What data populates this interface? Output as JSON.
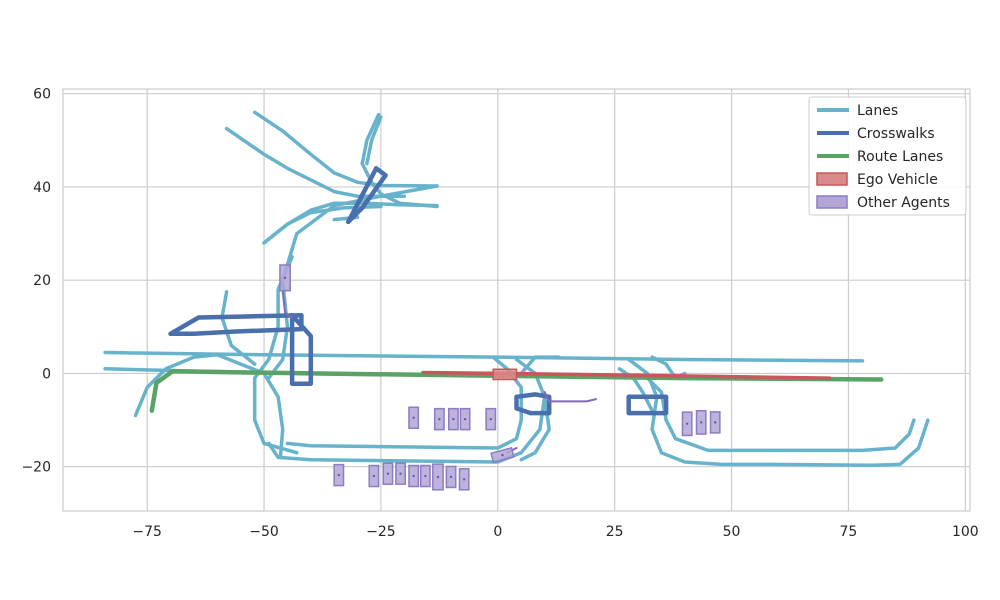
{
  "chart_data": {
    "type": "line",
    "title": "",
    "xlabel": "",
    "ylabel": "",
    "xlim": [
      -93,
      101
    ],
    "ylim": [
      -29.5,
      61
    ],
    "xticks": [
      -75,
      -50,
      -25,
      0,
      25,
      50,
      75,
      100
    ],
    "yticks": [
      -20,
      0,
      20,
      40,
      60
    ],
    "xtick_labels": [
      "−75",
      "−50",
      "−25",
      "0",
      "25",
      "50",
      "75",
      "100"
    ],
    "ytick_labels": [
      "−20",
      "0",
      "20",
      "40",
      "60"
    ],
    "grid": true,
    "legend_position": "top-right",
    "legend": [
      {
        "label": "Lanes",
        "kind": "line",
        "color": "#67b3cc"
      },
      {
        "label": "Crosswalks",
        "kind": "line",
        "color": "#4a6fad"
      },
      {
        "label": "Route Lanes",
        "kind": "line",
        "color": "#5aa265"
      },
      {
        "label": "Ego Vehicle",
        "kind": "patch",
        "color": "#d98a8a",
        "edge": "#c8565a"
      },
      {
        "label": "Other Agents",
        "kind": "patch",
        "color": "#b1a6d6",
        "edge": "#8d7cc0"
      }
    ],
    "lanes": [
      [
        [
          -84,
          4.5
        ],
        [
          -50,
          4
        ],
        [
          0,
          3.5
        ],
        [
          40,
          3
        ],
        [
          78,
          2.7
        ]
      ],
      [
        [
          -84,
          1
        ],
        [
          -65,
          0.5
        ],
        [
          -40,
          0
        ],
        [
          0,
          -0.5
        ],
        [
          40,
          -1
        ],
        [
          82,
          -1.3
        ]
      ],
      [
        [
          -77.5,
          -9
        ],
        [
          -75,
          -3
        ],
        [
          -71,
          1
        ],
        [
          -65,
          3.5
        ],
        [
          -60,
          4
        ],
        [
          -55,
          2
        ],
        [
          -50,
          0
        ],
        [
          -47,
          -5
        ],
        [
          -46,
          -12
        ],
        [
          -46.5,
          -18
        ]
      ],
      [
        [
          -58,
          17.5
        ],
        [
          -59,
          12
        ],
        [
          -57,
          6
        ],
        [
          -52,
          2
        ]
      ],
      [
        [
          -43,
          -17
        ],
        [
          -50,
          -15
        ],
        [
          -52,
          -10
        ],
        [
          -52,
          -1
        ],
        [
          -49,
          3
        ],
        [
          -47,
          10
        ],
        [
          -47,
          18
        ],
        [
          -44,
          25
        ]
      ],
      [
        [
          -49,
          -1
        ],
        [
          -46,
          3
        ],
        [
          -45,
          10
        ],
        [
          -46,
          20
        ],
        [
          -43,
          30
        ],
        [
          -35,
          36
        ],
        [
          -25,
          38
        ],
        [
          -13,
          40.2
        ]
      ],
      [
        [
          -52,
          56
        ],
        [
          -46,
          52
        ],
        [
          -40,
          47
        ],
        [
          -35,
          43
        ],
        [
          -30,
          41
        ],
        [
          -25,
          40.3
        ],
        [
          -13,
          40.2
        ]
      ],
      [
        [
          -58,
          52.5
        ],
        [
          -50,
          47
        ],
        [
          -45,
          44
        ],
        [
          -40,
          41.5
        ],
        [
          -35,
          39
        ],
        [
          -30,
          38
        ],
        [
          -25,
          38
        ],
        [
          -20,
          38
        ]
      ],
      [
        [
          -50,
          28
        ],
        [
          -45,
          32
        ],
        [
          -40,
          35
        ],
        [
          -35,
          36.5
        ],
        [
          -28,
          36.5
        ],
        [
          -22,
          36.2
        ],
        [
          -13,
          36
        ]
      ],
      [
        [
          -50,
          28
        ],
        [
          -45,
          32
        ],
        [
          -40,
          34.5
        ],
        [
          -33,
          35.5
        ],
        [
          -25,
          35.8
        ]
      ],
      [
        [
          -25.5,
          55.5
        ],
        [
          -28,
          50
        ],
        [
          -29,
          45
        ],
        [
          -27,
          41
        ],
        [
          -25,
          38.5
        ],
        [
          -21,
          36.5
        ],
        [
          -15,
          36
        ],
        [
          -13,
          35.8
        ]
      ],
      [
        [
          -25,
          55
        ],
        [
          -27,
          50
        ],
        [
          -28,
          45
        ]
      ],
      [
        [
          -35,
          33
        ],
        [
          -30,
          33.5
        ]
      ],
      [
        [
          -49,
          -15
        ],
        [
          -47,
          -18
        ],
        [
          -40,
          -18.5
        ],
        [
          0,
          -19
        ],
        [
          5,
          -17
        ],
        [
          9,
          -12
        ],
        [
          10,
          -5
        ],
        [
          8,
          0
        ],
        [
          4,
          3
        ]
      ],
      [
        [
          -45,
          -15
        ],
        [
          -40,
          -15.5
        ],
        [
          0,
          -16
        ],
        [
          4,
          -14
        ],
        [
          5,
          -10
        ],
        [
          5,
          -3
        ],
        [
          2,
          1
        ],
        [
          -1,
          3.5
        ]
      ],
      [
        [
          5,
          0
        ],
        [
          8,
          3.5
        ],
        [
          13,
          3.5
        ]
      ],
      [
        [
          10,
          -5
        ],
        [
          11,
          -12
        ],
        [
          8,
          -17
        ],
        [
          5,
          -18.5
        ]
      ],
      [
        [
          28,
          3
        ],
        [
          32,
          0
        ],
        [
          34,
          -5
        ],
        [
          33,
          -12
        ],
        [
          35,
          -17
        ],
        [
          40,
          -19
        ],
        [
          48,
          -19.5
        ],
        [
          58,
          -19.5
        ],
        [
          80,
          -19.7
        ],
        [
          86,
          -19.5
        ],
        [
          90,
          -16
        ],
        [
          92,
          -10
        ]
      ],
      [
        [
          32,
          -1
        ],
        [
          35,
          -4
        ],
        [
          36,
          -10
        ],
        [
          38,
          -14
        ],
        [
          45,
          -16.5
        ],
        [
          58,
          -16.5
        ],
        [
          78,
          -16.5
        ],
        [
          85,
          -16
        ],
        [
          88,
          -13
        ],
        [
          89,
          -10
        ]
      ],
      [
        [
          26,
          1
        ],
        [
          29,
          -1
        ],
        [
          31,
          -4
        ],
        [
          33,
          -8
        ]
      ],
      [
        [
          33,
          3.5
        ],
        [
          36,
          2
        ],
        [
          38,
          -1
        ],
        [
          40,
          0
        ]
      ]
    ],
    "crosswalks": [
      [
        [
          -70,
          8.5
        ],
        [
          -64,
          12
        ],
        [
          -55,
          12.2
        ],
        [
          -42,
          12.5
        ],
        [
          -42,
          9.5
        ],
        [
          -56,
          9
        ],
        [
          -65,
          8.5
        ],
        [
          -70,
          8.5
        ]
      ],
      [
        [
          -44,
          12.5
        ],
        [
          -40,
          8
        ],
        [
          -40,
          -2.2
        ],
        [
          -44,
          -2.2
        ],
        [
          -44,
          12.5
        ]
      ],
      [
        [
          -32,
          32.5
        ],
        [
          -26,
          44
        ],
        [
          -24,
          42.5
        ],
        [
          -29,
          35.5
        ],
        [
          -32,
          32.5
        ]
      ],
      [
        [
          4,
          -5
        ],
        [
          4,
          -7.5
        ],
        [
          7,
          -8.5
        ],
        [
          11,
          -8.5
        ],
        [
          11,
          -5
        ],
        [
          8,
          -4.5
        ],
        [
          4,
          -5
        ]
      ],
      [
        [
          28,
          -5
        ],
        [
          28,
          -8.5
        ],
        [
          36,
          -8.5
        ],
        [
          36,
          -5
        ],
        [
          28,
          -5
        ]
      ]
    ],
    "route_lanes": [
      [
        [
          -74,
          -8
        ],
        [
          -73,
          -2
        ],
        [
          -69.5,
          0.5
        ],
        [
          -60,
          0.3
        ],
        [
          -40,
          0
        ],
        [
          0,
          -0.5
        ],
        [
          40,
          -1
        ],
        [
          82,
          -1.3
        ]
      ]
    ],
    "ego_vehicle": {
      "center": [
        1.5,
        -0.2
      ],
      "length": 5,
      "width": 2.2,
      "trajectory": [
        [
          -16,
          0.2
        ],
        [
          0,
          0
        ],
        [
          30,
          -0.4
        ],
        [
          71,
          -1
        ]
      ]
    },
    "other_agents": [
      {
        "center": [
          -45.5,
          20.5
        ],
        "length": 2.2,
        "width": 5.5
      },
      {
        "center": [
          -18,
          -9.5
        ],
        "length": 2,
        "width": 4.5
      },
      {
        "center": [
          -12.5,
          -9.8
        ],
        "length": 2,
        "width": 4.5
      },
      {
        "center": [
          -9.5,
          -9.8
        ],
        "length": 2,
        "width": 4.5
      },
      {
        "center": [
          -7,
          -9.8
        ],
        "length": 2,
        "width": 4.5
      },
      {
        "center": [
          -1.5,
          -9.8
        ],
        "length": 2,
        "width": 4.5
      },
      {
        "center": [
          1,
          -17.5
        ],
        "length": 4.5,
        "width": 2,
        "angle": -15
      },
      {
        "center": [
          40.5,
          -10.8
        ],
        "length": 2,
        "width": 5
      },
      {
        "center": [
          43.5,
          -10.5
        ],
        "length": 2,
        "width": 5
      },
      {
        "center": [
          46.5,
          -10.5
        ],
        "length": 2,
        "width": 4.5
      },
      {
        "center": [
          -34,
          -21.8
        ],
        "length": 2,
        "width": 4.5
      },
      {
        "center": [
          -26.5,
          -22
        ],
        "length": 2,
        "width": 4.5
      },
      {
        "center": [
          -23.5,
          -21.5
        ],
        "length": 2,
        "width": 4.5
      },
      {
        "center": [
          -20.8,
          -21.5
        ],
        "length": 2,
        "width": 4.5
      },
      {
        "center": [
          -18,
          -22
        ],
        "length": 2,
        "width": 4.5
      },
      {
        "center": [
          -15.5,
          -22
        ],
        "length": 2,
        "width": 4.5
      },
      {
        "center": [
          -12.8,
          -22.2
        ],
        "length": 2.2,
        "width": 5.5
      },
      {
        "center": [
          -10,
          -22.2
        ],
        "length": 2,
        "width": 4.5
      },
      {
        "center": [
          -7.2,
          -22.7
        ],
        "length": 2,
        "width": 4.5
      }
    ],
    "agent_trajectories": [
      [
        [
          -46,
          17.5
        ],
        [
          -45.5,
          13
        ],
        [
          -44,
          12
        ]
      ],
      [
        [
          10,
          -4
        ],
        [
          11,
          -6
        ],
        [
          15,
          -6
        ],
        [
          19,
          -6
        ],
        [
          21,
          -5.5
        ]
      ],
      [
        [
          2,
          -17
        ],
        [
          3,
          -16.5
        ],
        [
          4,
          -16
        ]
      ]
    ]
  },
  "colors": {
    "lanes": "#67b3cc",
    "crosswalks": "#4a6fad",
    "route_lanes": "#5aa265",
    "ego_fill": "#d98a8a",
    "ego_edge": "#c8565a",
    "ego_traj": "#c8565a",
    "agent_fill": "#b1a6d6",
    "agent_edge": "#8d7cc0",
    "agent_traj": "#8468b8",
    "grid": "#cccccc",
    "axis_edge": "#cccccc"
  }
}
